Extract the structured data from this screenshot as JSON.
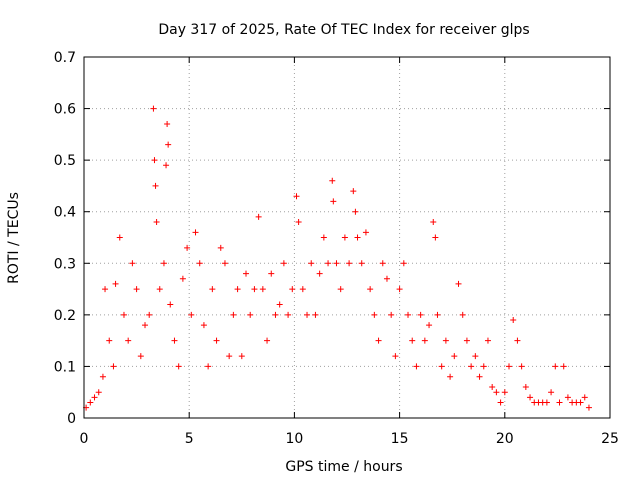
{
  "chart_data": {
    "type": "scatter",
    "title": "Day 317 of 2025, Rate Of TEC Index for receiver glps",
    "xlabel": "GPS time / hours",
    "ylabel": "ROTI / TECUs",
    "xlim": [
      0,
      25
    ],
    "ylim": [
      0,
      0.7
    ],
    "xticks": [
      0,
      5,
      10,
      15,
      20,
      25
    ],
    "yticks": [
      0,
      0.1,
      0.2,
      0.3,
      0.4,
      0.5,
      0.6,
      0.7
    ],
    "xtick_labels": [
      "0",
      "5",
      "10",
      "15",
      "20",
      "25"
    ],
    "ytick_labels": [
      "0",
      "0.1",
      "0.2",
      "0.3",
      "0.4",
      "0.5",
      "0.6",
      "0.7"
    ],
    "grid": true,
    "marker": "+",
    "color": "#ff0000",
    "series": [
      {
        "name": "ROTI",
        "points": [
          [
            0.1,
            0.02
          ],
          [
            0.3,
            0.03
          ],
          [
            0.5,
            0.04
          ],
          [
            0.7,
            0.05
          ],
          [
            0.9,
            0.08
          ],
          [
            1.0,
            0.25
          ],
          [
            1.2,
            0.15
          ],
          [
            1.4,
            0.1
          ],
          [
            1.5,
            0.26
          ],
          [
            1.7,
            0.35
          ],
          [
            1.9,
            0.2
          ],
          [
            2.1,
            0.15
          ],
          [
            2.3,
            0.3
          ],
          [
            2.5,
            0.25
          ],
          [
            2.7,
            0.12
          ],
          [
            2.9,
            0.18
          ],
          [
            3.1,
            0.2
          ],
          [
            3.3,
            0.6
          ],
          [
            3.35,
            0.5
          ],
          [
            3.4,
            0.45
          ],
          [
            3.45,
            0.38
          ],
          [
            3.6,
            0.25
          ],
          [
            3.8,
            0.3
          ],
          [
            3.9,
            0.49
          ],
          [
            3.95,
            0.57
          ],
          [
            4.0,
            0.53
          ],
          [
            4.1,
            0.22
          ],
          [
            4.3,
            0.15
          ],
          [
            4.5,
            0.1
          ],
          [
            4.7,
            0.27
          ],
          [
            4.9,
            0.33
          ],
          [
            5.1,
            0.2
          ],
          [
            5.3,
            0.36
          ],
          [
            5.5,
            0.3
          ],
          [
            5.7,
            0.18
          ],
          [
            5.9,
            0.1
          ],
          [
            6.1,
            0.25
          ],
          [
            6.3,
            0.15
          ],
          [
            6.5,
            0.33
          ],
          [
            6.7,
            0.3
          ],
          [
            6.9,
            0.12
          ],
          [
            7.1,
            0.2
          ],
          [
            7.3,
            0.25
          ],
          [
            7.5,
            0.12
          ],
          [
            7.7,
            0.28
          ],
          [
            7.9,
            0.2
          ],
          [
            8.1,
            0.25
          ],
          [
            8.3,
            0.39
          ],
          [
            8.5,
            0.25
          ],
          [
            8.7,
            0.15
          ],
          [
            8.9,
            0.28
          ],
          [
            9.1,
            0.2
          ],
          [
            9.3,
            0.22
          ],
          [
            9.5,
            0.3
          ],
          [
            9.7,
            0.2
          ],
          [
            9.9,
            0.25
          ],
          [
            10.1,
            0.43
          ],
          [
            10.2,
            0.38
          ],
          [
            10.4,
            0.25
          ],
          [
            10.6,
            0.2
          ],
          [
            10.8,
            0.3
          ],
          [
            11.0,
            0.2
          ],
          [
            11.2,
            0.28
          ],
          [
            11.4,
            0.35
          ],
          [
            11.6,
            0.3
          ],
          [
            11.8,
            0.46
          ],
          [
            11.85,
            0.42
          ],
          [
            12.0,
            0.3
          ],
          [
            12.2,
            0.25
          ],
          [
            12.4,
            0.35
          ],
          [
            12.6,
            0.3
          ],
          [
            12.8,
            0.44
          ],
          [
            12.9,
            0.4
          ],
          [
            13.0,
            0.35
          ],
          [
            13.2,
            0.3
          ],
          [
            13.4,
            0.36
          ],
          [
            13.6,
            0.25
          ],
          [
            13.8,
            0.2
          ],
          [
            14.0,
            0.15
          ],
          [
            14.2,
            0.3
          ],
          [
            14.4,
            0.27
          ],
          [
            14.6,
            0.2
          ],
          [
            14.8,
            0.12
          ],
          [
            15.0,
            0.25
          ],
          [
            15.2,
            0.3
          ],
          [
            15.4,
            0.2
          ],
          [
            15.6,
            0.15
          ],
          [
            15.8,
            0.1
          ],
          [
            16.0,
            0.2
          ],
          [
            16.2,
            0.15
          ],
          [
            16.4,
            0.18
          ],
          [
            16.6,
            0.38
          ],
          [
            16.7,
            0.35
          ],
          [
            16.8,
            0.2
          ],
          [
            17.0,
            0.1
          ],
          [
            17.2,
            0.15
          ],
          [
            17.4,
            0.08
          ],
          [
            17.6,
            0.12
          ],
          [
            17.8,
            0.26
          ],
          [
            18.0,
            0.2
          ],
          [
            18.2,
            0.15
          ],
          [
            18.4,
            0.1
          ],
          [
            18.6,
            0.12
          ],
          [
            18.8,
            0.08
          ],
          [
            19.0,
            0.1
          ],
          [
            19.2,
            0.15
          ],
          [
            19.4,
            0.06
          ],
          [
            19.6,
            0.05
          ],
          [
            19.8,
            0.03
          ],
          [
            20.0,
            0.05
          ],
          [
            20.2,
            0.1
          ],
          [
            20.4,
            0.19
          ],
          [
            20.6,
            0.15
          ],
          [
            20.8,
            0.1
          ],
          [
            21.0,
            0.06
          ],
          [
            21.2,
            0.04
          ],
          [
            21.4,
            0.03
          ],
          [
            21.6,
            0.03
          ],
          [
            21.8,
            0.03
          ],
          [
            22.0,
            0.03
          ],
          [
            22.2,
            0.05
          ],
          [
            22.4,
            0.1
          ],
          [
            22.6,
            0.03
          ],
          [
            22.8,
            0.1
          ],
          [
            23.0,
            0.04
          ],
          [
            23.2,
            0.03
          ],
          [
            23.4,
            0.03
          ],
          [
            23.6,
            0.03
          ],
          [
            23.8,
            0.04
          ],
          [
            24.0,
            0.02
          ]
        ]
      }
    ]
  }
}
